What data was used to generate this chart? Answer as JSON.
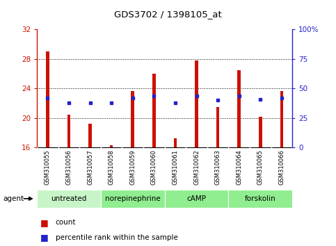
{
  "title": "GDS3702 / 1398105_at",
  "samples": [
    "GSM310055",
    "GSM310056",
    "GSM310057",
    "GSM310058",
    "GSM310059",
    "GSM310060",
    "GSM310061",
    "GSM310062",
    "GSM310063",
    "GSM310064",
    "GSM310065",
    "GSM310066"
  ],
  "counts": [
    29.0,
    20.5,
    19.2,
    16.3,
    23.7,
    26.0,
    17.3,
    27.8,
    21.5,
    26.5,
    20.2,
    23.7
  ],
  "percentile_ranks_pct": [
    42,
    38,
    38,
    38,
    42,
    44,
    38,
    44,
    40,
    44,
    41,
    42
  ],
  "y_min": 16,
  "y_max": 32,
  "y_ticks": [
    16,
    20,
    24,
    28,
    32
  ],
  "right_y_ticks": [
    0,
    25,
    50,
    75,
    100
  ],
  "right_y_labels": [
    "0",
    "25",
    "50",
    "75",
    "100%"
  ],
  "group_labels": [
    "untreated",
    "norepinephrine",
    "cAMP",
    "forskolin"
  ],
  "group_starts": [
    0,
    3,
    6,
    9
  ],
  "group_ends": [
    3,
    6,
    9,
    12
  ],
  "group_colors": [
    "#c8f5c8",
    "#90ee90",
    "#90ee90",
    "#90ee90"
  ],
  "bar_color": "#cc1100",
  "dot_color": "#2222cc",
  "background_color": "#ffffff",
  "ylabel_color": "#cc1100",
  "right_ylabel_color": "#2222cc",
  "tick_bg": "#cccccc",
  "grid_linestyle": ":",
  "grid_color": "#000000",
  "bar_width": 0.15
}
